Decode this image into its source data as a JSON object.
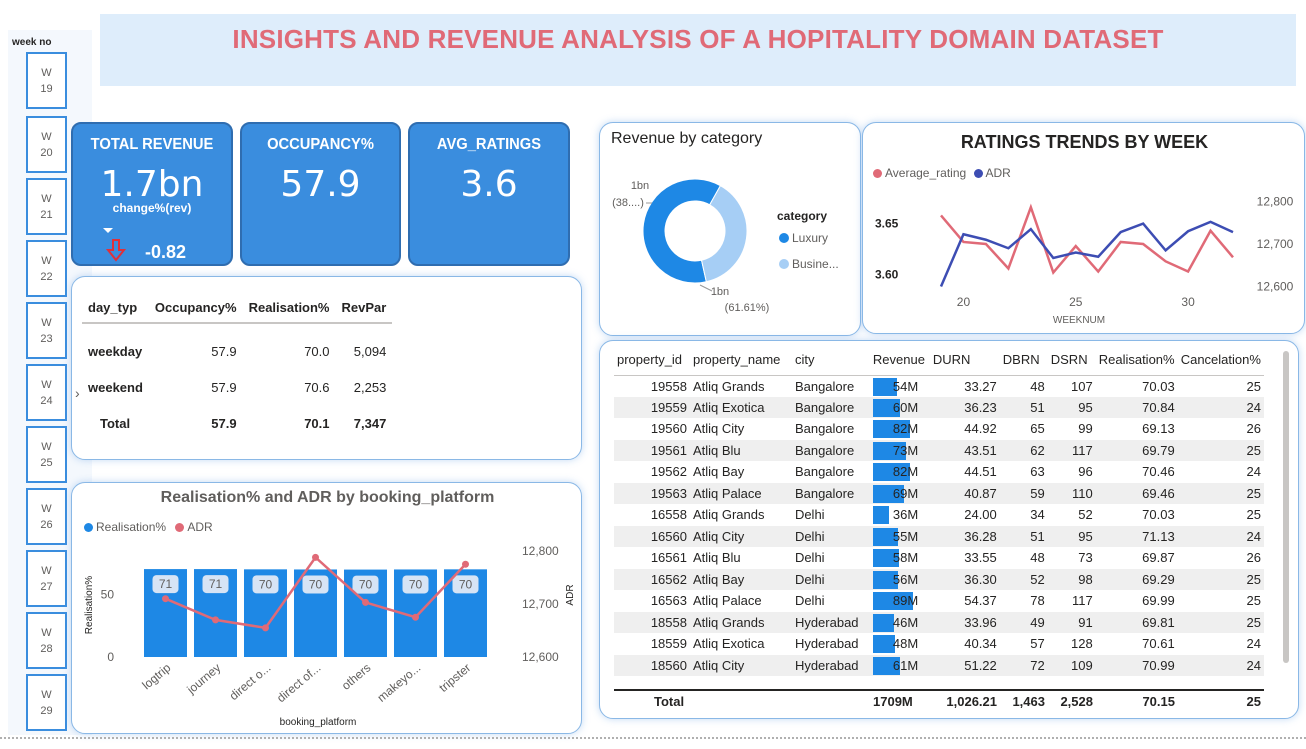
{
  "banner": {
    "title": "INSIGHTS AND REVENUE ANALYSIS OF A  HOPITALITY DOMAIN DATASET"
  },
  "slicer": {
    "title": "week no",
    "weeks": [
      [
        "W",
        "19"
      ],
      [
        "W",
        "20"
      ],
      [
        "W",
        "21"
      ],
      [
        "W",
        "22"
      ],
      [
        "W",
        "23"
      ],
      [
        "W",
        "24"
      ],
      [
        "W",
        "25"
      ],
      [
        "W",
        "26"
      ],
      [
        "W",
        "27"
      ],
      [
        "W",
        "28"
      ],
      [
        "W",
        "29"
      ]
    ]
  },
  "kpis": {
    "revenue": {
      "label": "TOTAL REVENUE",
      "value": "1.7bn",
      "change_label": "change%(rev)",
      "change_value": "-0.82"
    },
    "occupancy": {
      "label": "OCCUPANCY%",
      "value": "57.9"
    },
    "ratings": {
      "label": "AVG_RATINGS",
      "value": "3.6"
    }
  },
  "daytype_table": {
    "headers": [
      "day_typ",
      "Occupancy%",
      "Realisation%",
      "RevPar"
    ],
    "rows": [
      [
        "weekday",
        "57.9",
        "70.0",
        "5,094"
      ],
      [
        "weekend",
        "57.9",
        "70.6",
        "2,253"
      ]
    ],
    "total": [
      "Total",
      "57.9",
      "70.1",
      "7,347"
    ]
  },
  "colors": {
    "blue": "#1e88e5",
    "light_blue": "#a6cef5",
    "red": "#e06a77",
    "navy": "#3d4db3",
    "accent_blue": "#3a8dde"
  },
  "chart_data": [
    {
      "type": "pie",
      "title": "Revenue by category",
      "legend_title": "category",
      "labels": [
        "Luxury",
        "Busine..."
      ],
      "values": [
        1.06,
        0.66
      ],
      "percent_labels": [
        "1bn\n(61.61%)",
        "1bn\n(38....)"
      ]
    },
    {
      "type": "line",
      "title": "RATINGS TRENDS BY WEEK",
      "xlabel": "WEEKNUM",
      "x": [
        19,
        20,
        21,
        22,
        23,
        24,
        25,
        26,
        27,
        28,
        29,
        30,
        31,
        32
      ],
      "x_ticks": [
        "20",
        "25",
        "30"
      ],
      "series": [
        {
          "name": "Average_rating",
          "axis": "left",
          "values": [
            3.658,
            3.632,
            3.63,
            3.606,
            3.666,
            3.602,
            3.628,
            3.603,
            3.632,
            3.63,
            3.613,
            3.603,
            3.643,
            3.617
          ]
        },
        {
          "name": "ADR",
          "axis": "right",
          "values": [
            12600,
            12723,
            12710,
            12690,
            12735,
            12667,
            12680,
            12670,
            12728,
            12748,
            12685,
            12730,
            12752,
            12728
          ]
        }
      ],
      "y_left_ticks": [
        "3.65",
        "3.60"
      ],
      "y_left_range": [
        3.58,
        3.68
      ],
      "y_right_ticks": [
        "12,800",
        "12,700",
        "12,600"
      ],
      "y_right_range": [
        12580,
        12820
      ],
      "legend_position": "top-left"
    },
    {
      "type": "bar",
      "title": "Realisation% and ADR by booking_platform",
      "xlabel": "booking_platform",
      "ylabel": "Realisation%",
      "y2label": "ADR",
      "categories": [
        "logtrip",
        "journey",
        "direct o...",
        "direct of...",
        "others",
        "makeyo...",
        "tripster"
      ],
      "series": [
        {
          "name": "Realisation%",
          "kind": "bar",
          "values": [
            70.5,
            70.5,
            70.3,
            70.2,
            70.1,
            70.2,
            70.3
          ],
          "labels": [
            "71",
            "71",
            "70",
            "70",
            "70",
            "70",
            "70"
          ]
        },
        {
          "name": "ADR",
          "kind": "line",
          "values": [
            12710,
            12670,
            12655,
            12788,
            12703,
            12675,
            12775
          ]
        }
      ],
      "y_left_ticks": [
        "50",
        "0"
      ],
      "ylim": [
        0,
        85
      ],
      "y_right_ticks": [
        "12,800",
        "12,700",
        "12,600"
      ],
      "y2lim": [
        12600,
        12800
      ],
      "legend_position": "top-left"
    }
  ],
  "property_table": {
    "headers": [
      "property_id",
      "property_name",
      "city",
      "Revenue",
      "DURN",
      "DBRN",
      "DSRN",
      "Realisation%",
      "Cancelation%"
    ],
    "sort_indicator": "▲",
    "rows": [
      [
        "19558",
        "Atliq Grands",
        "Bangalore",
        "54M",
        "33.27",
        "48",
        "107",
        "70.03",
        "25"
      ],
      [
        "19559",
        "Atliq Exotica",
        "Bangalore",
        "60M",
        "36.23",
        "51",
        "95",
        "70.84",
        "24"
      ],
      [
        "19560",
        "Atliq City",
        "Bangalore",
        "82M",
        "44.92",
        "65",
        "99",
        "69.13",
        "26"
      ],
      [
        "19561",
        "Atliq Blu",
        "Bangalore",
        "73M",
        "43.51",
        "62",
        "117",
        "69.79",
        "25"
      ],
      [
        "19562",
        "Atliq Bay",
        "Bangalore",
        "82M",
        "44.51",
        "63",
        "96",
        "70.46",
        "24"
      ],
      [
        "19563",
        "Atliq Palace",
        "Bangalore",
        "69M",
        "40.87",
        "59",
        "110",
        "69.46",
        "25"
      ],
      [
        "16558",
        "Atliq Grands",
        "Delhi",
        "36M",
        "24.00",
        "34",
        "52",
        "70.03",
        "25"
      ],
      [
        "16560",
        "Atliq City",
        "Delhi",
        "55M",
        "36.28",
        "51",
        "95",
        "71.13",
        "24"
      ],
      [
        "16561",
        "Atliq Blu",
        "Delhi",
        "58M",
        "33.55",
        "48",
        "73",
        "69.87",
        "26"
      ],
      [
        "16562",
        "Atliq Bay",
        "Delhi",
        "56M",
        "36.30",
        "52",
        "98",
        "69.29",
        "25"
      ],
      [
        "16563",
        "Atliq Palace",
        "Delhi",
        "89M",
        "54.37",
        "78",
        "117",
        "69.99",
        "25"
      ],
      [
        "18558",
        "Atliq Grands",
        "Hyderabad",
        "46M",
        "33.96",
        "49",
        "91",
        "69.81",
        "25"
      ],
      [
        "18559",
        "Atliq Exotica",
        "Hyderabad",
        "48M",
        "40.34",
        "57",
        "128",
        "70.61",
        "24"
      ],
      [
        "18560",
        "Atliq City",
        "Hyderabad",
        "61M",
        "51.22",
        "72",
        "109",
        "70.99",
        "24"
      ]
    ],
    "revenue_values": [
      54,
      60,
      82,
      73,
      82,
      69,
      36,
      55,
      58,
      56,
      89,
      46,
      48,
      61
    ],
    "total": [
      "Total",
      "",
      "",
      "1709M",
      "1,026.21",
      "1,463",
      "2,528",
      "70.15",
      "25"
    ]
  }
}
